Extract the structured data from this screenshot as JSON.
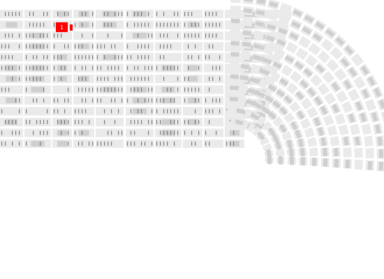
{
  "seat_map": {
    "selected_seat_label": "1",
    "colors": {
      "background": "#ffffff",
      "block": "#eaeaea",
      "block_alt": "#ebebeb",
      "filled_block": "#cfcfcf",
      "seat_tick": "#7a7a7a",
      "selected": "#ff0000",
      "selected_text": "#ffffff",
      "label": "#808080"
    },
    "icons": [
      "seat-marker-icon"
    ]
  }
}
